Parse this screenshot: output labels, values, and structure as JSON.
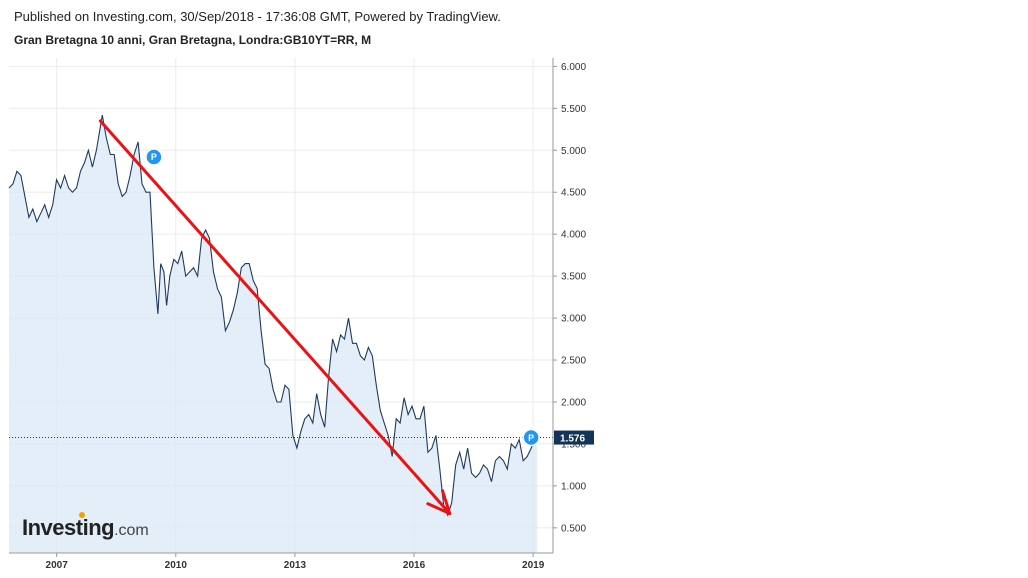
{
  "header": {
    "published": "Published on Investing.com, 30/Sep/2018 - 17:36:08 GMT, Powered by TradingView.",
    "symbol": "Gran Bretagna 10 anni, Gran Bretagna, Londra:GB10YT=RR, M"
  },
  "logo": {
    "name": "Investing",
    "suffix": ".com"
  },
  "colors": {
    "line": "#1f3a5f",
    "area": "#dbe8f5",
    "arrow": "#ee1111",
    "last_label_bg": "#123456",
    "marker": "#2196f3"
  },
  "chart_data": {
    "type": "area",
    "xlabel": "",
    "ylabel": "",
    "xlim": [
      2005.8,
      2019.5
    ],
    "ylim": [
      0.2,
      6.1
    ],
    "x_ticks": [
      2007,
      2010,
      2013,
      2016,
      2019
    ],
    "y_ticks": [
      "6.000",
      "5.500",
      "5.000",
      "4.500",
      "4.000",
      "3.500",
      "3.000",
      "2.500",
      "2.000",
      "1.500",
      "1.000",
      "0.500"
    ],
    "last_value": "1.576",
    "series": [
      {
        "values": [
          [
            2005.8,
            4.55
          ],
          [
            2005.9,
            4.6
          ],
          [
            2006.0,
            4.75
          ],
          [
            2006.1,
            4.7
          ],
          [
            2006.2,
            4.45
          ],
          [
            2006.3,
            4.2
          ],
          [
            2006.4,
            4.3
          ],
          [
            2006.5,
            4.15
          ],
          [
            2006.6,
            4.25
          ],
          [
            2006.7,
            4.35
          ],
          [
            2006.8,
            4.2
          ],
          [
            2006.9,
            4.35
          ],
          [
            2007.0,
            4.65
          ],
          [
            2007.1,
            4.55
          ],
          [
            2007.2,
            4.7
          ],
          [
            2007.3,
            4.55
          ],
          [
            2007.4,
            4.5
          ],
          [
            2007.5,
            4.55
          ],
          [
            2007.6,
            4.75
          ],
          [
            2007.7,
            4.85
          ],
          [
            2007.8,
            5.0
          ],
          [
            2007.9,
            4.8
          ],
          [
            2008.0,
            5.0
          ],
          [
            2008.15,
            5.42
          ],
          [
            2008.25,
            5.15
          ],
          [
            2008.35,
            4.95
          ],
          [
            2008.45,
            4.95
          ],
          [
            2008.55,
            4.6
          ],
          [
            2008.65,
            4.45
          ],
          [
            2008.75,
            4.5
          ],
          [
            2008.85,
            4.7
          ],
          [
            2008.95,
            4.95
          ],
          [
            2009.05,
            5.1
          ],
          [
            2009.15,
            4.6
          ],
          [
            2009.25,
            4.5
          ],
          [
            2009.35,
            4.5
          ],
          [
            2009.45,
            3.6
          ],
          [
            2009.55,
            3.05
          ],
          [
            2009.62,
            3.65
          ],
          [
            2009.7,
            3.55
          ],
          [
            2009.77,
            3.15
          ],
          [
            2009.85,
            3.5
          ],
          [
            2009.95,
            3.7
          ],
          [
            2010.05,
            3.65
          ],
          [
            2010.15,
            3.8
          ],
          [
            2010.25,
            3.5
          ],
          [
            2010.35,
            3.55
          ],
          [
            2010.45,
            3.6
          ],
          [
            2010.55,
            3.5
          ],
          [
            2010.65,
            3.95
          ],
          [
            2010.75,
            4.05
          ],
          [
            2010.85,
            3.95
          ],
          [
            2010.95,
            3.55
          ],
          [
            2011.05,
            3.35
          ],
          [
            2011.15,
            3.25
          ],
          [
            2011.25,
            2.85
          ],
          [
            2011.35,
            2.95
          ],
          [
            2011.45,
            3.1
          ],
          [
            2011.55,
            3.3
          ],
          [
            2011.65,
            3.6
          ],
          [
            2011.75,
            3.65
          ],
          [
            2011.85,
            3.65
          ],
          [
            2011.95,
            3.45
          ],
          [
            2012.05,
            3.35
          ],
          [
            2012.15,
            2.85
          ],
          [
            2012.25,
            2.45
          ],
          [
            2012.35,
            2.4
          ],
          [
            2012.45,
            2.15
          ],
          [
            2012.55,
            2.0
          ],
          [
            2012.65,
            2.0
          ],
          [
            2012.75,
            2.2
          ],
          [
            2012.85,
            2.15
          ],
          [
            2012.95,
            1.6
          ],
          [
            2013.05,
            1.45
          ],
          [
            2013.15,
            1.65
          ],
          [
            2013.25,
            1.8
          ],
          [
            2013.35,
            1.85
          ],
          [
            2013.45,
            1.75
          ],
          [
            2013.55,
            2.1
          ],
          [
            2013.65,
            1.85
          ],
          [
            2013.75,
            1.7
          ],
          [
            2013.85,
            2.3
          ],
          [
            2013.95,
            2.75
          ],
          [
            2014.05,
            2.6
          ],
          [
            2014.15,
            2.8
          ],
          [
            2014.25,
            2.75
          ],
          [
            2014.35,
            3.0
          ],
          [
            2014.45,
            2.7
          ],
          [
            2014.55,
            2.7
          ],
          [
            2014.65,
            2.55
          ],
          [
            2014.75,
            2.5
          ],
          [
            2014.85,
            2.65
          ],
          [
            2014.95,
            2.55
          ],
          [
            2015.05,
            2.2
          ],
          [
            2015.15,
            1.9
          ],
          [
            2015.25,
            1.75
          ],
          [
            2015.35,
            1.6
          ],
          [
            2015.45,
            1.35
          ],
          [
            2015.55,
            1.8
          ],
          [
            2015.65,
            1.75
          ],
          [
            2015.75,
            2.05
          ],
          [
            2015.85,
            1.85
          ],
          [
            2015.95,
            1.95
          ],
          [
            2016.05,
            1.8
          ],
          [
            2016.15,
            1.8
          ],
          [
            2016.25,
            1.95
          ],
          [
            2016.35,
            1.4
          ],
          [
            2016.45,
            1.45
          ],
          [
            2016.55,
            1.6
          ],
          [
            2016.65,
            1.2
          ],
          [
            2016.75,
            0.75
          ],
          [
            2016.85,
            0.65
          ],
          [
            2016.95,
            0.8
          ],
          [
            2017.05,
            1.25
          ],
          [
            2017.15,
            1.4
          ],
          [
            2017.25,
            1.2
          ],
          [
            2017.35,
            1.45
          ],
          [
            2017.45,
            1.15
          ],
          [
            2017.55,
            1.1
          ],
          [
            2017.65,
            1.15
          ],
          [
            2017.75,
            1.25
          ],
          [
            2017.85,
            1.2
          ],
          [
            2017.95,
            1.05
          ],
          [
            2018.05,
            1.3
          ],
          [
            2018.15,
            1.35
          ],
          [
            2018.25,
            1.3
          ],
          [
            2018.35,
            1.2
          ],
          [
            2018.45,
            1.5
          ],
          [
            2018.55,
            1.45
          ],
          [
            2018.65,
            1.55
          ],
          [
            2018.75,
            1.3
          ],
          [
            2018.85,
            1.35
          ],
          [
            2018.95,
            1.45
          ],
          [
            2019.05,
            1.55
          ],
          [
            2019.1,
            1.576
          ]
        ]
      }
    ],
    "annotations": {
      "arrow": {
        "start": [
          2008.1,
          5.35
        ],
        "end": [
          2016.9,
          0.67
        ]
      },
      "markers": [
        {
          "label": "P",
          "x": 2009.45,
          "y": 4.92
        },
        {
          "label": "P",
          "x": 2018.95,
          "y": 1.576
        }
      ]
    }
  }
}
